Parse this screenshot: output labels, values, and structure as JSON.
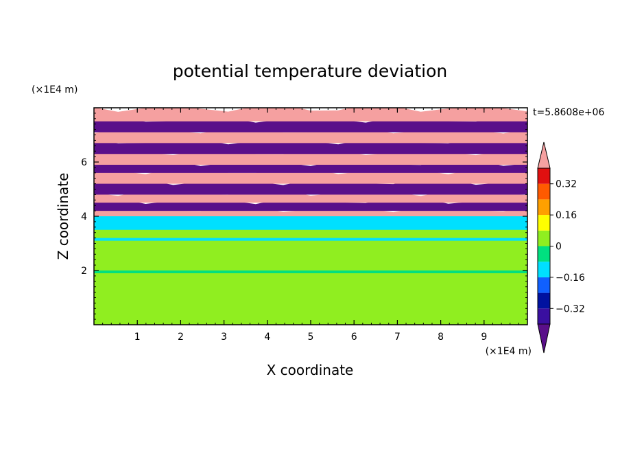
{
  "chart_data": {
    "type": "heatmap",
    "title": "potential temperature deviation",
    "xlabel": "X coordinate",
    "ylabel": "Z coordinate",
    "x_unit": "(×1E4 m)",
    "y_unit": "(×1E4 m)",
    "time_label": "t=5.8608e+06",
    "xlim": [
      0,
      10
    ],
    "ylim": [
      0,
      8
    ],
    "x_ticks": [
      1,
      2,
      3,
      4,
      5,
      6,
      7,
      8,
      9
    ],
    "y_ticks": [
      2,
      4,
      6
    ],
    "colorbar": {
      "levels": [
        -0.4,
        -0.32,
        -0.24,
        -0.16,
        -0.08,
        0,
        0.08,
        0.16,
        0.24,
        0.32,
        0.4
      ],
      "tick_values": [
        0.32,
        0.16,
        0,
        -0.16,
        -0.32
      ],
      "tick_labels": [
        "0.32",
        "0.16",
        "0",
        "−0.16",
        "−0.32"
      ],
      "colors": [
        "#5a0f8a",
        "#3a0fa0",
        "#0012a0",
        "#1060ff",
        "#00e0ff",
        "#00e080",
        "#90ee20",
        "#ffff00",
        "#ffa000",
        "#ff5a00",
        "#e01010",
        "#f5a0a0"
      ],
      "extend": "both"
    },
    "bands": [
      {
        "z": [
          0.0,
          1.8
        ],
        "value": 0.05
      },
      {
        "z": [
          1.8,
          2.0
        ],
        "value": 0.02
      },
      {
        "z": [
          2.0,
          2.1
        ],
        "value": -0.05
      },
      {
        "z": [
          2.1,
          2.8
        ],
        "value": 0.02
      },
      {
        "z": [
          2.8,
          3.2
        ],
        "value": 0.0
      },
      {
        "z": [
          3.2,
          3.3
        ],
        "value": -0.1
      },
      {
        "z": [
          3.3,
          3.6
        ],
        "value": 0.0
      },
      {
        "z": [
          3.6,
          3.8
        ],
        "value": -0.12
      },
      {
        "z": [
          3.8,
          4.1
        ],
        "value": -0.15
      },
      {
        "z": [
          4.1,
          4.3
        ],
        "value": 0.45
      },
      {
        "z": [
          4.3,
          4.6
        ],
        "value": -0.45
      },
      {
        "z": [
          4.6,
          4.9
        ],
        "value": 0.45
      },
      {
        "z": [
          4.9,
          5.3
        ],
        "value": -0.45
      },
      {
        "z": [
          5.3,
          5.7
        ],
        "value": 0.45
      },
      {
        "z": [
          5.7,
          6.0
        ],
        "value": -0.45
      },
      {
        "z": [
          6.0,
          6.4
        ],
        "value": 0.45
      },
      {
        "z": [
          6.4,
          6.8
        ],
        "value": -0.45
      },
      {
        "z": [
          6.8,
          7.2
        ],
        "value": 0.45
      },
      {
        "z": [
          7.2,
          7.6
        ],
        "value": -0.45
      },
      {
        "z": [
          7.6,
          8.0
        ],
        "value": 0.45
      }
    ]
  }
}
